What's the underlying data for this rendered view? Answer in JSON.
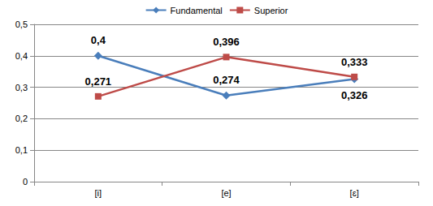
{
  "chart_data": {
    "type": "line",
    "categories": [
      "[i]",
      "[e]",
      "[ɛ]"
    ],
    "series": [
      {
        "name": "Fundamental",
        "color": "#4a7ebb",
        "marker": "diamond",
        "values": [
          0.4,
          0.274,
          0.326
        ],
        "value_labels": [
          "0,4",
          "0,274",
          "0,326"
        ]
      },
      {
        "name": "Superior",
        "color": "#be4b48",
        "marker": "square",
        "values": [
          0.271,
          0.396,
          0.333
        ],
        "value_labels": [
          "0,271",
          "0,396",
          "0,333"
        ]
      }
    ],
    "ylim": [
      0,
      0.5
    ],
    "yticks": [
      0,
      {
        "value": 0.1,
        "label": "0,1"
      },
      {
        "value": 0.2,
        "label": "0,2"
      },
      {
        "value": 0.3,
        "label": "0,3"
      },
      {
        "value": 0.4,
        "label": "0,4"
      },
      {
        "value": 0.5,
        "label": "0,5"
      }
    ],
    "grid": true,
    "legend": "top",
    "data_labels": true
  }
}
